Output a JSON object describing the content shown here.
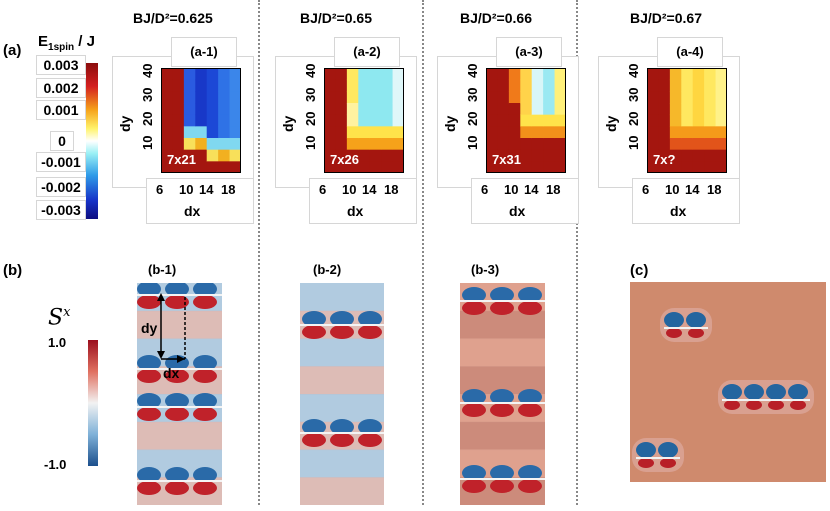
{
  "panel_labels": {
    "a": "(a)",
    "b": "(b)",
    "c": "(c)"
  },
  "energy_colorbar": {
    "title_main": "E",
    "title_sub": "1spin",
    "title_tail": " / J",
    "ticks": [
      "0.003",
      "0.002",
      "0.001",
      "0",
      "-0.001",
      "-0.002",
      "-0.003"
    ]
  },
  "spin_colorbar": {
    "symbol": "S",
    "superscript": "x",
    "max": "1.0",
    "min": "-1.0"
  },
  "heatmaps": [
    {
      "title": "BJ/D²=0.625",
      "subtitle": "(a-1)",
      "inset": "7x21"
    },
    {
      "title": "BJ/D²=0.65",
      "subtitle": "(a-2)",
      "inset": "7x26"
    },
    {
      "title": "BJ/D²=0.66",
      "subtitle": "(a-3)",
      "inset": "7x31"
    },
    {
      "title": "BJ/D²=0.67",
      "subtitle": "(a-4)",
      "inset": "7x?"
    }
  ],
  "heatmap_axes": {
    "xlabel": "dx",
    "ylabel": "dy",
    "xticks": [
      "6",
      "10",
      "14",
      "18"
    ],
    "yticks": [
      "40",
      "30",
      "20",
      "10"
    ]
  },
  "spin_panels": [
    {
      "label": "(b-1)"
    },
    {
      "label": "(b-2)"
    },
    {
      "label": "(b-3)"
    },
    {
      "label": "(c)"
    }
  ],
  "annotations": {
    "dy": "dy",
    "dx": "dx"
  },
  "colors": {
    "dark_red": "#a01a14",
    "salmon": "#c97a5e",
    "blue": "#1f5aa6",
    "cyan": "#8ee8f0",
    "yellow": "#ffe34a"
  }
}
